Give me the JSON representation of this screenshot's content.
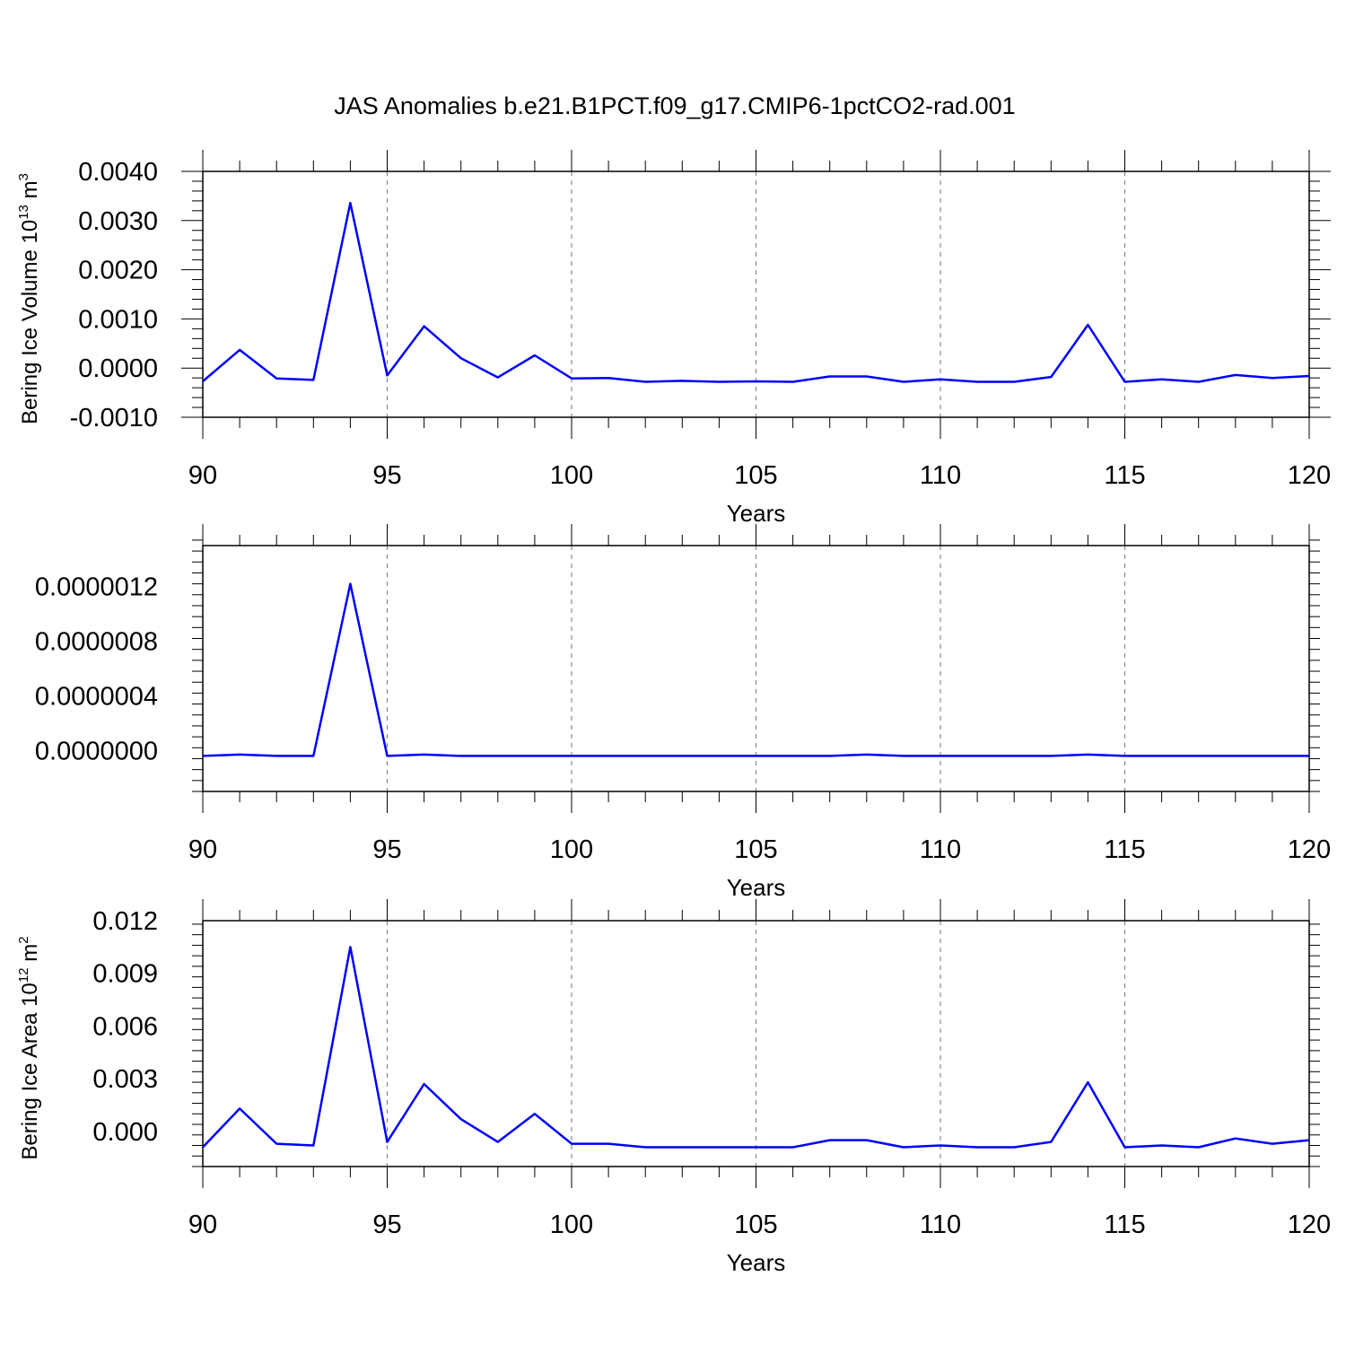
{
  "title": "JAS Anomalies b.e21.B1PCT.f09_g17.CMIP6-1pctCO2-rad.001",
  "line_color": "#0000ff",
  "chart_data": [
    {
      "type": "line",
      "ylabel": {
        "text": "Bering Ice Volume 10",
        "sup1": "13",
        "mid": " m",
        "sup2": "3"
      },
      "xlabel": "Years",
      "xlim": [
        90,
        120
      ],
      "ylim": [
        -0.001,
        0.004
      ],
      "x_ticks": [
        "90",
        "95",
        "100",
        "105",
        "110",
        "115",
        "120"
      ],
      "y_ticks": [
        {
          "value": -0.001,
          "label": "-0.0010"
        },
        {
          "value": 0.0,
          "label": "0.0000"
        },
        {
          "value": 0.001,
          "label": "0.0010"
        },
        {
          "value": 0.002,
          "label": "0.0020"
        },
        {
          "value": 0.003,
          "label": "0.0030"
        },
        {
          "value": 0.004,
          "label": "0.0040"
        }
      ],
      "x": [
        90,
        91,
        92,
        93,
        94,
        95,
        96,
        97,
        98,
        99,
        100,
        101,
        102,
        103,
        104,
        105,
        106,
        107,
        108,
        109,
        110,
        111,
        112,
        113,
        114,
        115,
        116,
        117,
        118,
        119,
        120
      ],
      "y": [
        -0.00027,
        0.00037,
        -0.00021,
        -0.00024,
        0.00336,
        -0.00015,
        0.00085,
        0.0002,
        -0.00019,
        0.00026,
        -0.00021,
        -0.0002,
        -0.00028,
        -0.00026,
        -0.00028,
        -0.00027,
        -0.00028,
        -0.00017,
        -0.00017,
        -0.00028,
        -0.00023,
        -0.00028,
        -0.00028,
        -0.00018,
        0.00088,
        -0.00028,
        -0.00023,
        -0.00028,
        -0.00014,
        -0.0002,
        -0.00016
      ]
    },
    {
      "type": "line",
      "ylabel": null,
      "xlabel": "Years",
      "xlim": [
        90,
        120
      ],
      "ylim": [
        -3e-07,
        1.5e-06
      ],
      "x_ticks": [
        "90",
        "95",
        "100",
        "105",
        "110",
        "115",
        "120"
      ],
      "y_ticks": [
        {
          "value": 0.0,
          "label": "0.0000000"
        },
        {
          "value": 4e-07,
          "label": "0.0000004"
        },
        {
          "value": 8e-07,
          "label": "0.0000008"
        },
        {
          "value": 1.2e-06,
          "label": "0.0000012"
        }
      ],
      "x": [
        90,
        91,
        92,
        93,
        94,
        95,
        96,
        97,
        98,
        99,
        100,
        101,
        102,
        103,
        104,
        105,
        106,
        107,
        108,
        109,
        110,
        111,
        112,
        113,
        114,
        115,
        116,
        117,
        118,
        119,
        120
      ],
      "y": [
        -4e-08,
        -3e-08,
        -4e-08,
        -4e-08,
        1.22e-06,
        -4e-08,
        -3e-08,
        -4e-08,
        -4e-08,
        -4e-08,
        -4e-08,
        -4e-08,
        -4e-08,
        -4e-08,
        -4e-08,
        -4e-08,
        -4e-08,
        -4e-08,
        -3e-08,
        -4e-08,
        -4e-08,
        -4e-08,
        -4e-08,
        -4e-08,
        -3e-08,
        -4e-08,
        -4e-08,
        -4e-08,
        -4e-08,
        -4e-08,
        -4e-08
      ]
    },
    {
      "type": "line",
      "ylabel": {
        "text": "Bering Ice Area 10",
        "sup1": "12",
        "mid": " m",
        "sup2": "2"
      },
      "xlabel": "Years",
      "xlim": [
        90,
        120
      ],
      "ylim": [
        -0.002,
        0.012
      ],
      "x_ticks": [
        "90",
        "95",
        "100",
        "105",
        "110",
        "115",
        "120"
      ],
      "y_ticks": [
        {
          "value": 0.0,
          "label": "0.000"
        },
        {
          "value": 0.003,
          "label": "0.003"
        },
        {
          "value": 0.006,
          "label": "0.006"
        },
        {
          "value": 0.009,
          "label": "0.009"
        },
        {
          "value": 0.012,
          "label": "0.012"
        }
      ],
      "x": [
        90,
        91,
        92,
        93,
        94,
        95,
        96,
        97,
        98,
        99,
        100,
        101,
        102,
        103,
        104,
        105,
        106,
        107,
        108,
        109,
        110,
        111,
        112,
        113,
        114,
        115,
        116,
        117,
        118,
        119,
        120
      ],
      "y": [
        -0.0009,
        0.0013,
        -0.0007,
        -0.0008,
        0.0105,
        -0.0006,
        0.0027,
        0.0007,
        -0.0006,
        0.001,
        -0.0007,
        -0.0007,
        -0.0009,
        -0.0009,
        -0.0009,
        -0.0009,
        -0.0009,
        -0.0005,
        -0.0005,
        -0.0009,
        -0.0008,
        -0.0009,
        -0.0009,
        -0.0006,
        0.0028,
        -0.0009,
        -0.0008,
        -0.0009,
        -0.0004,
        -0.0007,
        -0.0005
      ]
    }
  ]
}
